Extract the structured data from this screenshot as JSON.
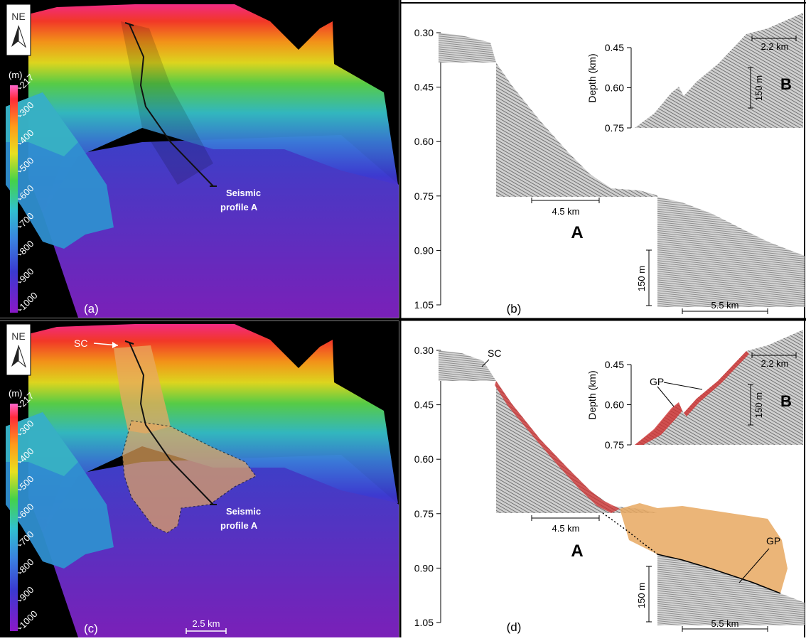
{
  "panels": {
    "a": {
      "label": "(a)",
      "compass": "NE",
      "colorbar": {
        "unit": "(m)",
        "ticks": [
          "-217",
          "-300",
          "-400",
          "-500",
          "-600",
          "-700",
          "-800",
          "-900",
          "-1000"
        ]
      },
      "profile_label_line1": "Seismic",
      "profile_label_line2": "profile A"
    },
    "b": {
      "label": "(b)",
      "depth_ticks": [
        "0.30",
        "0.45",
        "0.60",
        "0.75",
        "0.90",
        "1.05"
      ],
      "section_a_label": "A",
      "scale_a": "4.5 km",
      "scale_a2": "5.5 km",
      "vscale_a": "150 m",
      "inset": {
        "label": "B",
        "axis_title": "Depth (km)",
        "ticks": [
          "0.45",
          "0.60",
          "0.75"
        ],
        "scale_h": "2.2 km",
        "scale_v": "150 m"
      }
    },
    "c": {
      "label": "(c)",
      "compass": "NE",
      "sc_label": "SC",
      "colorbar": {
        "unit": "(m)",
        "ticks": [
          "-217",
          "-300",
          "-400",
          "-500",
          "-600",
          "-700",
          "-800",
          "-900",
          "-1000"
        ]
      },
      "profile_label_line1": "Seismic",
      "profile_label_line2": "profile A",
      "scalebar": "2.5 km"
    },
    "d": {
      "label": "(d)",
      "depth_ticks": [
        "0.30",
        "0.45",
        "0.60",
        "0.75",
        "0.90",
        "1.05"
      ],
      "sc_label": "SC",
      "gp_label": "GP",
      "section_a_label": "A",
      "scale_a": "4.5 km",
      "scale_a2": "5.5 km",
      "vscale_a": "150 m",
      "inset": {
        "label": "B",
        "axis_title": "Depth (km)",
        "ticks": [
          "0.45",
          "0.60",
          "0.75"
        ],
        "scale_h": "2.2 km",
        "scale_v": "150 m",
        "gp_label": "GP"
      }
    }
  },
  "colors": {
    "depth_ramp": [
      "#ff2d8a",
      "#ff3a2a",
      "#ff9a1a",
      "#e8e020",
      "#5bd64a",
      "#35c0c8",
      "#3a7ad8",
      "#3c3ad0",
      "#7a1cc8"
    ],
    "gp_fill": "#e8a860",
    "red_trace": "#d03030"
  }
}
